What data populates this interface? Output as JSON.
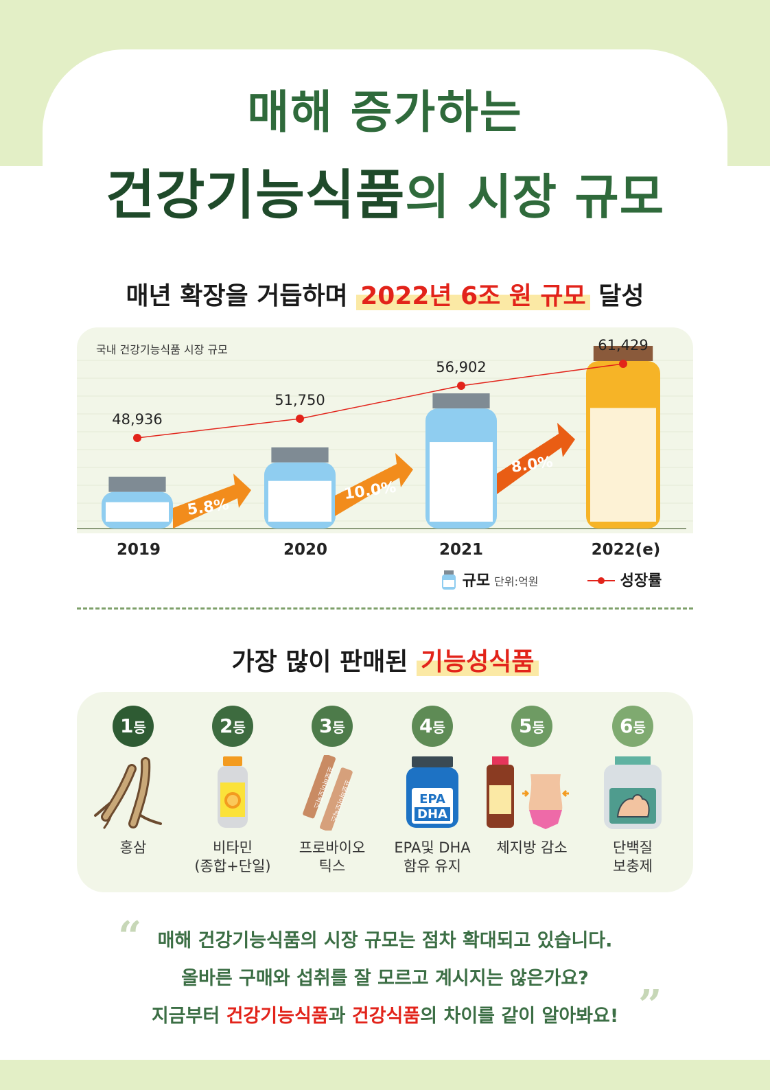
{
  "title": {
    "line1": "매해 증가하는",
    "line2_strong": "건강기능식품",
    "line2_rest": "의 시장 규모"
  },
  "subtitle": {
    "prefix": "매년 확장을 거듭하며 ",
    "highlight": "2022년 6조 원 규모",
    "suffix": " 달성"
  },
  "chart_data": {
    "type": "bar",
    "title": "국내 건강기능식품 시장 규모",
    "categories": [
      "2019",
      "2020",
      "2021",
      "2022(e)"
    ],
    "series": [
      {
        "name": "규모",
        "values": [
          48936,
          51750,
          56902,
          61429
        ]
      }
    ],
    "value_labels": [
      "48,936",
      "51,750",
      "56,902",
      "61,429"
    ],
    "growth_rates": [
      "5.8%",
      "10.0%",
      "8.0%"
    ],
    "legend": {
      "bar": "규모",
      "unit": "단위:억원",
      "line": "성장률"
    },
    "ylim": [
      44000,
      63000
    ],
    "colors": {
      "bar": "#8fcdf0",
      "bar_highlight": "#f6b427",
      "cap": "#7f8b94",
      "cap_highlight": "#8a5a3b",
      "arrow": "#f28c1c",
      "arrow_dark": "#e95d14",
      "line": "#e2231a"
    }
  },
  "section2": {
    "prefix": "가장 많이 판매된 ",
    "highlight": "기능성식품"
  },
  "ranks": [
    {
      "num": "1",
      "suffix": "등",
      "label": "홍삼",
      "color": "#2e5b33",
      "icon": "ginseng-icon"
    },
    {
      "num": "2",
      "suffix": "등",
      "label": "비타민\n(종합+단일)",
      "color": "#3d6b3f",
      "icon": "vitamin-icon"
    },
    {
      "num": "3",
      "suffix": "등",
      "label": "프로바이오\n틱스",
      "color": "#4d7b4a",
      "icon": "probiotics-icon"
    },
    {
      "num": "4",
      "suffix": "등",
      "label": "EPA및 DHA\n함유 유지",
      "color": "#5e8b55",
      "icon": "epa-dha-icon"
    },
    {
      "num": "5",
      "suffix": "등",
      "label": "체지방 감소",
      "color": "#6e9b63",
      "icon": "fat-loss-icon"
    },
    {
      "num": "6",
      "suffix": "등",
      "label": "단백질\n보충제",
      "color": "#7faa70",
      "icon": "protein-icon"
    }
  ],
  "icon_text": {
    "probiotics": "프로바이오틱스",
    "epa": "EPA",
    "dha": "DHA"
  },
  "quote": {
    "line1": "매해 건강기능식품의 시장 규모는 점차 확대되고 있습니다.",
    "line2": "올바른 구매와 섭취를 잘 모르고 계시지는 않은가요?",
    "line3_prefix": "지금부터 ",
    "line3_red1": "건강기능식품",
    "line3_mid": "과 ",
    "line3_red2": "건강식품",
    "line3_suffix": "의 차이를 같이 알아봐요!"
  }
}
